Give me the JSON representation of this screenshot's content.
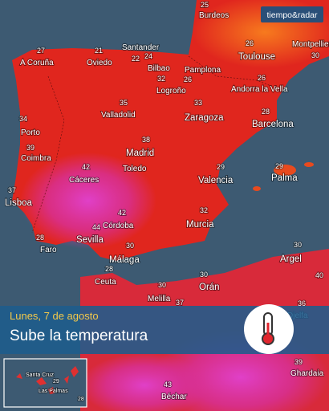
{
  "brand": "tiempo&radar",
  "banner": {
    "date": "Lunes, 7 de agosto",
    "headline": "Sube la temperatura"
  },
  "cities": [
    {
      "name": "Burdeos",
      "temp": 25
    },
    {
      "name": "A Coruña",
      "temp": 27
    },
    {
      "name": "Oviedo",
      "temp": 21
    },
    {
      "name": "Santander",
      "temp": 22
    },
    {
      "name": "Bilbao",
      "temp": 24
    },
    {
      "name": "Toulouse",
      "temp": 26
    },
    {
      "name": "Montpellier",
      "temp": 30
    },
    {
      "name": "Pamplona",
      "temp": 26
    },
    {
      "name": "Logroño",
      "temp": 32
    },
    {
      "name": "Andorra la Vella",
      "temp": 26
    },
    {
      "name": "Valladolid",
      "temp": 35
    },
    {
      "name": "Zaragoza",
      "temp": 33
    },
    {
      "name": "Barcelona",
      "temp": 28
    },
    {
      "name": "Porto",
      "temp": 34
    },
    {
      "name": "Coimbra",
      "temp": 39
    },
    {
      "name": "Madrid",
      "temp": 38
    },
    {
      "name": "Toledo"
    },
    {
      "name": "Cáceres",
      "temp": 42
    },
    {
      "name": "Valencia",
      "temp": 29
    },
    {
      "name": "Palma",
      "temp": 29
    },
    {
      "name": "Lisboa",
      "temp": 37
    },
    {
      "name": "Córdoba",
      "temp": 42
    },
    {
      "name": "Sevilla",
      "temp": 44
    },
    {
      "name": "Faro",
      "temp": 28
    },
    {
      "name": "Murcia",
      "temp": 32
    },
    {
      "name": "Málaga",
      "temp": 30
    },
    {
      "name": "Argel",
      "temp": 30
    },
    {
      "name": "Ceuta",
      "temp": 28
    },
    {
      "name": "Melilla",
      "temp": 30
    },
    {
      "name": "Orán",
      "temp": 30
    },
    {
      "temp": 37
    },
    {
      "temp": 40
    },
    {
      "name": "Djelfa",
      "temp": 36
    },
    {
      "name": "Ghardaia",
      "temp": 39
    },
    {
      "name": "Béchar",
      "temp": 43
    }
  ],
  "inset": {
    "cities": [
      {
        "name": "Santa Cruz",
        "temp": 29
      },
      {
        "name": "Las Palmas",
        "temp": 28
      }
    ]
  }
}
